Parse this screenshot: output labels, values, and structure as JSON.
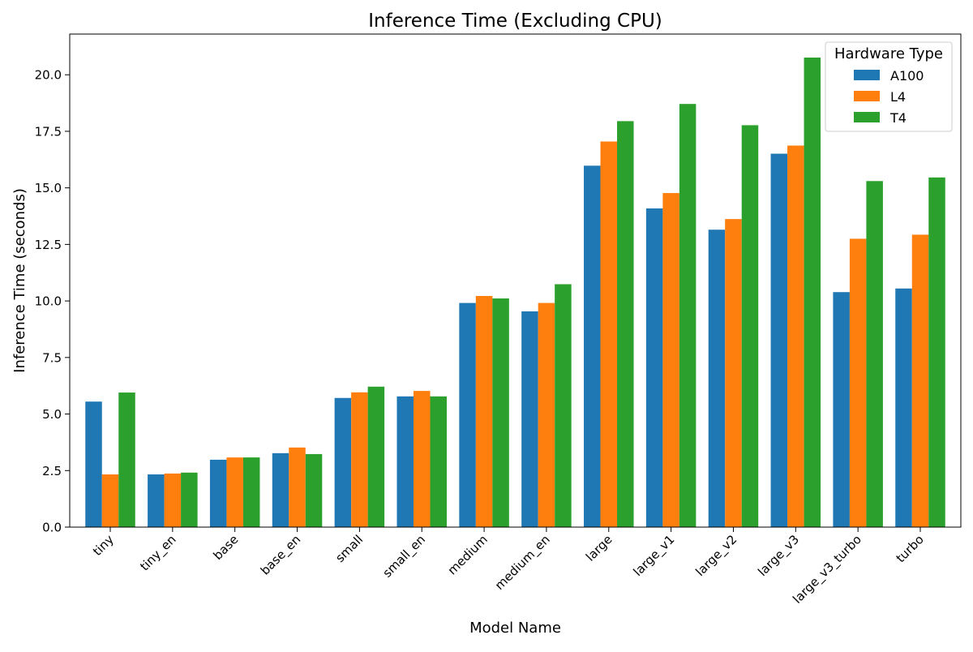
{
  "chart_data": {
    "type": "bar",
    "title": "Inference Time (Excluding CPU)",
    "xlabel": "Model Name",
    "ylabel": "Inference Time (seconds)",
    "ylim": [
      0,
      21.8
    ],
    "yticks": [
      0.0,
      2.5,
      5.0,
      7.5,
      10.0,
      12.5,
      15.0,
      17.5,
      20.0
    ],
    "ytick_labels": [
      "0.0",
      "2.5",
      "5.0",
      "7.5",
      "10.0",
      "12.5",
      "15.0",
      "17.5",
      "20.0"
    ],
    "grid": false,
    "legend": {
      "title": "Hardware Type",
      "placement": "top-right"
    },
    "categories": [
      "tiny",
      "tiny_en",
      "base",
      "base_en",
      "small",
      "small_en",
      "medium",
      "medium_en",
      "large",
      "large_v1",
      "large_v2",
      "large_v3",
      "large_v3_turbo",
      "turbo"
    ],
    "series": [
      {
        "name": "A100",
        "color": "#1f77b4",
        "values": [
          5.55,
          2.33,
          2.98,
          3.27,
          5.71,
          5.78,
          9.91,
          9.54,
          15.98,
          14.09,
          13.15,
          16.51,
          10.39,
          10.55
        ]
      },
      {
        "name": "L4",
        "color": "#ff7f0e",
        "values": [
          2.33,
          2.37,
          3.08,
          3.52,
          5.96,
          6.02,
          10.22,
          9.91,
          17.05,
          14.77,
          13.62,
          16.87,
          12.75,
          12.93
        ]
      },
      {
        "name": "T4",
        "color": "#2ca02c",
        "values": [
          5.95,
          2.41,
          3.08,
          3.23,
          6.21,
          5.78,
          10.11,
          10.74,
          17.95,
          18.71,
          17.77,
          20.76,
          15.3,
          15.46
        ]
      }
    ]
  }
}
